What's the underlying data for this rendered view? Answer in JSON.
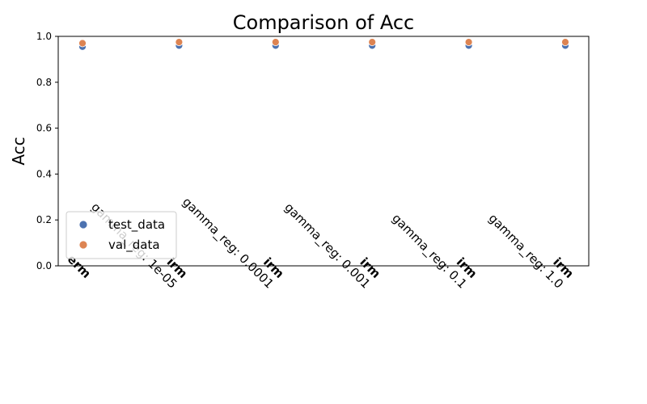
{
  "chart_data": {
    "type": "scatter",
    "title": "Comparison of Acc",
    "xlabel": "",
    "ylabel": "Acc",
    "ylim": [
      0,
      1
    ],
    "yticks": [
      "0.0",
      "0.2",
      "0.4",
      "0.6",
      "0.8",
      "1.0"
    ],
    "grid": false,
    "legend_position": "lower-left",
    "categories": [
      {
        "main": "erm",
        "sub": ""
      },
      {
        "main": "irm",
        "sub": "gamma_reg: 1e-05"
      },
      {
        "main": "irm",
        "sub": "gamma_reg: 0.0001"
      },
      {
        "main": "irm",
        "sub": "gamma_reg: 0.001"
      },
      {
        "main": "irm",
        "sub": "gamma_reg: 0.1"
      },
      {
        "main": "irm",
        "sub": "gamma_reg: 1.0"
      }
    ],
    "series": [
      {
        "name": "test_data",
        "color": "#4c72b0",
        "values": [
          0.955,
          0.96,
          0.96,
          0.96,
          0.96,
          0.96
        ]
      },
      {
        "name": "val_data",
        "color": "#dd8452",
        "values": [
          0.97,
          0.975,
          0.975,
          0.975,
          0.975,
          0.975
        ]
      }
    ]
  }
}
